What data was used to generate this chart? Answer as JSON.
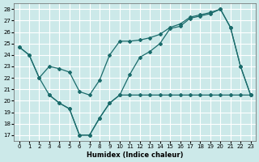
{
  "xlabel": "Humidex (Indice chaleur)",
  "background_color": "#cce9e9",
  "grid_color": "#ffffff",
  "line_color": "#1a6b6b",
  "xlim": [
    -0.5,
    23.5
  ],
  "ylim": [
    16.5,
    28.5
  ],
  "yticks": [
    17,
    18,
    19,
    20,
    21,
    22,
    23,
    24,
    25,
    26,
    27,
    28
  ],
  "xticks": [
    0,
    1,
    2,
    3,
    4,
    5,
    6,
    7,
    8,
    9,
    10,
    11,
    12,
    13,
    14,
    15,
    16,
    17,
    18,
    19,
    20,
    21,
    22,
    23
  ],
  "line1_x": [
    0,
    1,
    2,
    3,
    4,
    5,
    6,
    7,
    8,
    9,
    10,
    11,
    12,
    13,
    14,
    15,
    16,
    17,
    18,
    19,
    20,
    21,
    22,
    23
  ],
  "line1_y": [
    24.7,
    24.0,
    22.0,
    20.5,
    19.8,
    19.3,
    17.0,
    17.0,
    18.5,
    19.8,
    20.5,
    22.3,
    23.8,
    24.3,
    25.0,
    26.3,
    26.5,
    27.2,
    27.4,
    27.6,
    28.0,
    26.4,
    23.0,
    20.5
  ],
  "line2_x": [
    0,
    1,
    2,
    3,
    4,
    5,
    6,
    7,
    8,
    9,
    10,
    11,
    12,
    13,
    14,
    15,
    16,
    17,
    18,
    19,
    20,
    21,
    22,
    23
  ],
  "line2_y": [
    24.7,
    24.0,
    22.0,
    23.0,
    22.8,
    22.5,
    20.8,
    20.5,
    21.8,
    24.0,
    25.2,
    25.2,
    25.3,
    25.5,
    25.8,
    26.4,
    26.7,
    27.3,
    27.5,
    27.7,
    28.0,
    26.4,
    23.0,
    20.5
  ],
  "line3_x": [
    3,
    4,
    5,
    6,
    7,
    8,
    9,
    10,
    11,
    12,
    13,
    14,
    15,
    16,
    17,
    18,
    19,
    20,
    21,
    22,
    23
  ],
  "line3_y": [
    20.5,
    19.8,
    19.3,
    17.0,
    17.0,
    18.5,
    19.8,
    20.5,
    20.5,
    20.5,
    20.5,
    20.5,
    20.5,
    20.5,
    20.5,
    20.5,
    20.5,
    20.5,
    20.5,
    20.5,
    20.5
  ]
}
